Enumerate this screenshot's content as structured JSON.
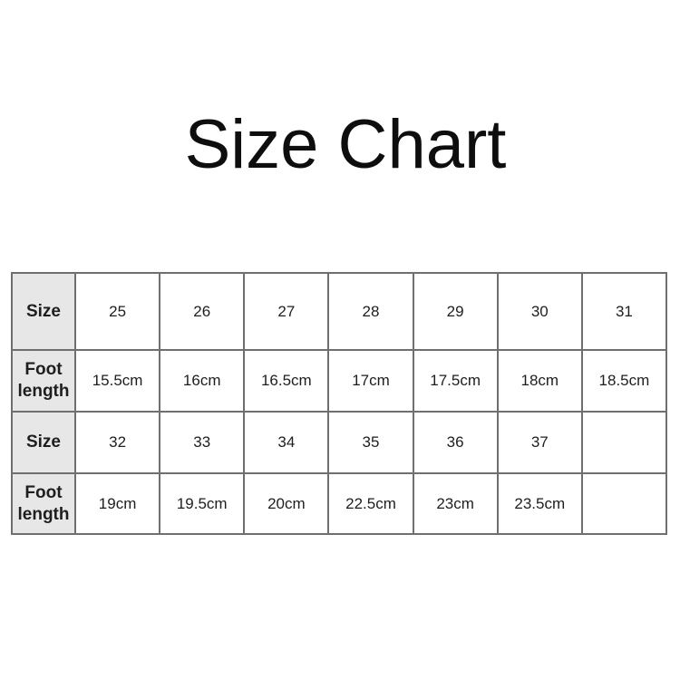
{
  "page": {
    "background": "#ffffff"
  },
  "colors": {
    "header_cell_bg": "#e7e7e7",
    "table_border": "#6f6f6f",
    "text": "#1e1e1e",
    "title_text": "#0e0e0e"
  },
  "chart_data": {
    "type": "table",
    "title": "Size Chart",
    "row_headers": [
      "Size",
      "Foot length",
      "Size",
      "Foot length"
    ],
    "rows": [
      {
        "label": "Size",
        "values": [
          "25",
          "26",
          "27",
          "28",
          "29",
          "30",
          "31"
        ]
      },
      {
        "label": "Foot length",
        "values": [
          "15.5cm",
          "16cm",
          "16.5cm",
          "17cm",
          "17.5cm",
          "18cm",
          "18.5cm"
        ]
      },
      {
        "label": "Size",
        "values": [
          "32",
          "33",
          "34",
          "35",
          "36",
          "37",
          ""
        ]
      },
      {
        "label": "Foot length",
        "values": [
          "19cm",
          "19.5cm",
          "20cm",
          "22.5cm",
          "23cm",
          "23.5cm",
          ""
        ]
      }
    ],
    "size_to_foot_length": {
      "25": "15.5cm",
      "26": "16cm",
      "27": "16.5cm",
      "28": "17cm",
      "29": "17.5cm",
      "30": "18cm",
      "31": "18.5cm",
      "32": "19cm",
      "33": "19.5cm",
      "34": "20cm",
      "35": "22.5cm",
      "36": "23cm",
      "37": "23.5cm"
    }
  }
}
